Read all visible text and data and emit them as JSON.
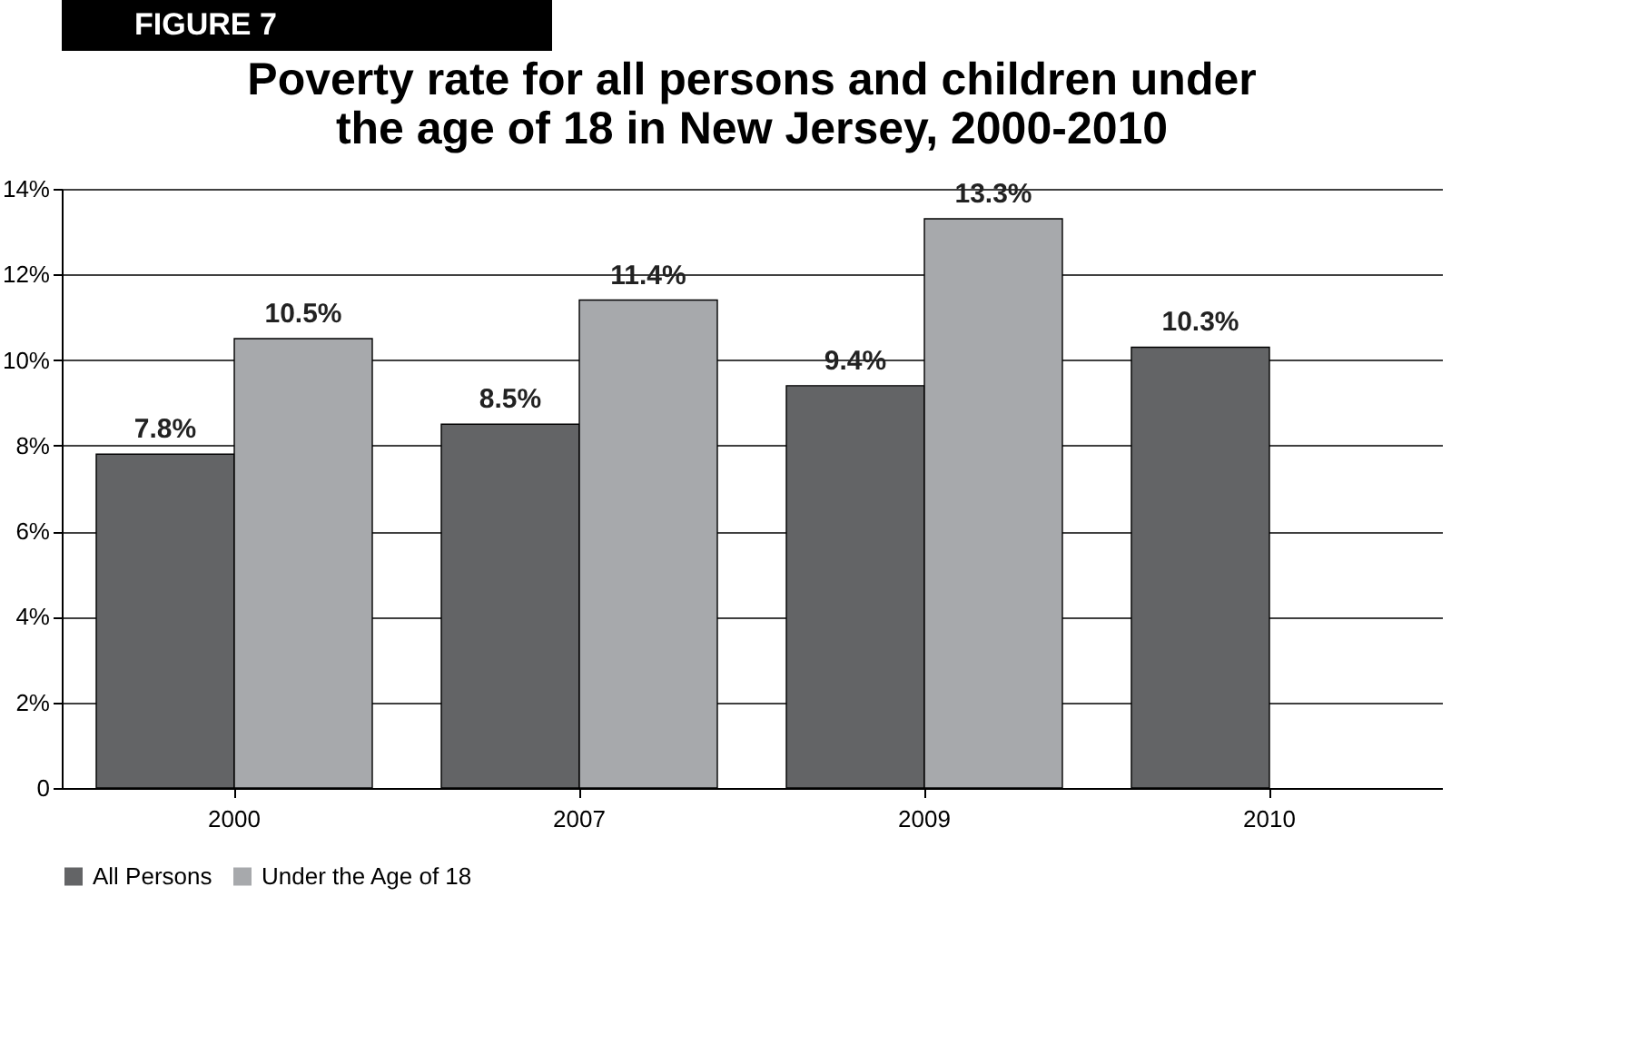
{
  "chart_data": {
    "type": "bar",
    "title": [
      "Poverty rate for all persons and children under",
      "the age of 18 in New Jersey, 2000-2010"
    ],
    "annotations": [
      "FIGURE 7"
    ],
    "categories": [
      "2000",
      "2007",
      "2009",
      "2010"
    ],
    "series": [
      {
        "name": "All Persons",
        "color": "#636466",
        "values": [
          7.8,
          8.5,
          9.4,
          10.3
        ],
        "value_labels": [
          "7.8%",
          "8.5%",
          "9.4%",
          "10.3%"
        ]
      },
      {
        "name": "Under the Age of 18",
        "color": "#a7a9ac",
        "values": [
          10.5,
          11.4,
          13.3,
          null
        ],
        "value_labels": [
          "10.5%",
          "11.4%",
          "13.3%",
          null
        ]
      }
    ],
    "ylim": [
      0,
      14
    ],
    "yticks": [
      0,
      {
        "value": 2,
        "label": "2%"
      },
      {
        "value": 4,
        "label": "4%"
      },
      {
        "value": 6,
        "label": "6%"
      },
      {
        "value": 8,
        "label": "8%"
      },
      {
        "value": 10,
        "label": "10%"
      },
      {
        "value": 12,
        "label": "12%"
      },
      {
        "value": 14,
        "label": "14%"
      }
    ],
    "grid": "y",
    "legend": "bottom"
  }
}
